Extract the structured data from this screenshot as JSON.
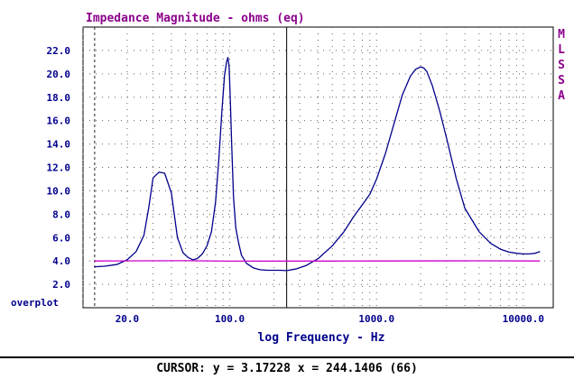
{
  "chart_data": {
    "type": "line",
    "title": "Impedance Magnitude - ohms (eq)",
    "xlabel": "log Frequency - Hz",
    "ylabel": "",
    "x_scale": "log",
    "xlim": [
      10,
      16000
    ],
    "ylim": [
      0,
      24
    ],
    "y_ticks": [
      "22.0",
      "20.0",
      "18.0",
      "16.0",
      "14.0",
      "12.0",
      "10.0",
      "8.0",
      "6.0",
      "4.0",
      "2.0"
    ],
    "x_ticks": [
      "20.0",
      "100.0",
      "1000.0",
      "10000.0"
    ],
    "grid": true,
    "series": [
      {
        "color": "#00008b",
        "x": [
          12,
          14,
          17,
          20,
          23,
          26,
          28,
          30,
          33,
          36,
          40,
          44,
          48,
          52,
          56,
          60,
          65,
          70,
          75,
          80,
          84,
          88,
          92,
          95,
          97,
          99,
          101,
          103,
          106,
          110,
          115,
          120,
          130,
          145,
          160,
          180,
          200,
          220,
          244,
          280,
          330,
          400,
          500,
          600,
          700,
          800,
          900,
          1000,
          1150,
          1300,
          1500,
          1700,
          1850,
          2000,
          2100,
          2200,
          2400,
          2700,
          3000,
          3500,
          4000,
          5000,
          6000,
          7000,
          8000,
          9000,
          10000,
          11000,
          12000,
          13000
        ],
        "y": [
          3.5,
          3.55,
          3.7,
          4.1,
          4.8,
          6.2,
          8.5,
          11.1,
          11.6,
          11.5,
          9.8,
          6.0,
          4.7,
          4.3,
          4.1,
          4.2,
          4.6,
          5.3,
          6.5,
          9.0,
          12.5,
          16.5,
          19.8,
          21.0,
          21.4,
          20.6,
          17.5,
          14.0,
          9.5,
          6.8,
          5.5,
          4.5,
          3.8,
          3.4,
          3.25,
          3.2,
          3.2,
          3.2,
          3.17,
          3.3,
          3.6,
          4.2,
          5.3,
          6.5,
          7.8,
          8.8,
          9.7,
          11.0,
          13.2,
          15.5,
          18.2,
          19.8,
          20.4,
          20.6,
          20.5,
          20.2,
          19.0,
          16.8,
          14.5,
          11.0,
          8.5,
          6.5,
          5.5,
          5.0,
          4.75,
          4.65,
          4.6,
          4.6,
          4.65,
          4.8
        ]
      },
      {
        "color": "#cc00cc",
        "x": [
          12,
          50,
          100,
          500,
          1000,
          5000,
          13000
        ],
        "y": [
          4.0,
          4.02,
          3.98,
          3.99,
          4.0,
          4.01,
          4.0
        ]
      }
    ],
    "side_letters": [
      "M",
      "L",
      "S",
      "S",
      "A"
    ],
    "overplot_label": "overplot"
  },
  "cursor": {
    "text": "CURSOR: y = 3.17228 x = 244.1406 (66)",
    "x_value": 244.1406
  },
  "colors": {
    "frame": "#000000",
    "grid": "#606060",
    "dashed_marker": "#202020"
  }
}
